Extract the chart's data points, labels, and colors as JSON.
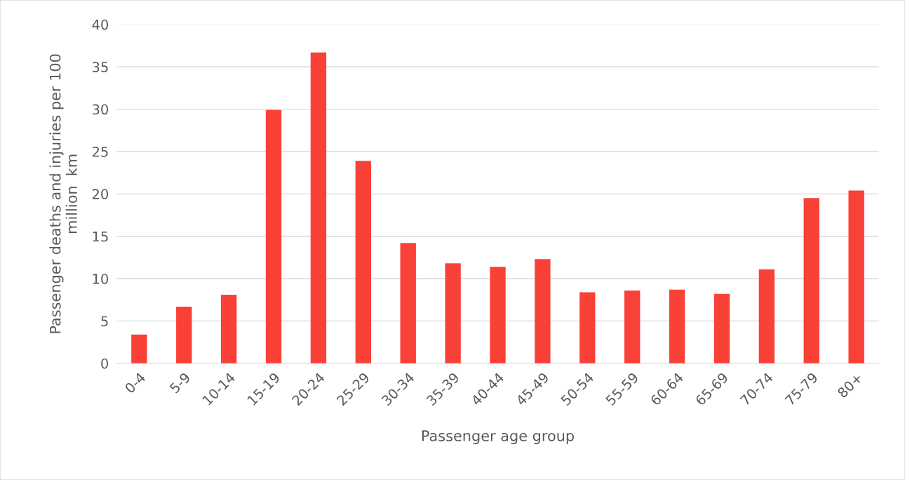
{
  "chart_data": {
    "type": "bar",
    "categories": [
      "0-4",
      "5-9",
      "10-14",
      "15-19",
      "20-24",
      "25-29",
      "30-34",
      "35-39",
      "40-44",
      "45-49",
      "50-54",
      "55-59",
      "60-64",
      "65-69",
      "70-74",
      "75-79",
      "80+"
    ],
    "values": [
      3.4,
      6.7,
      8.1,
      29.9,
      36.7,
      23.9,
      14.2,
      11.8,
      11.4,
      12.3,
      8.4,
      8.6,
      8.7,
      8.2,
      11.1,
      19.5,
      20.4
    ],
    "color": "#fa4138",
    "xlabel": "Passenger age group",
    "ylabel": "Passenger deaths and injuries per 100\nmillion  km",
    "ylim": [
      0,
      40
    ],
    "yticks": [
      0,
      5,
      10,
      15,
      20,
      25,
      30,
      35,
      40
    ],
    "grid": "y",
    "legend": false
  }
}
